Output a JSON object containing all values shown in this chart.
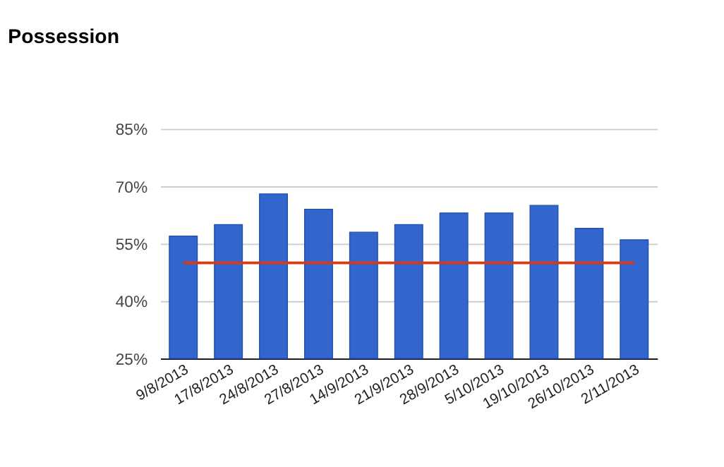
{
  "chart_data": {
    "type": "bar",
    "title": "Possession",
    "categories": [
      "9/8/2013",
      "17/8/2013",
      "24/8/2013",
      "27/8/2013",
      "14/9/2013",
      "21/9/2013",
      "28/9/2013",
      "5/10/2013",
      "19/10/2013",
      "26/10/2013",
      "2/11/2013"
    ],
    "series": [
      {
        "color": "#3366cc",
        "values": [
          57,
          60,
          68,
          64,
          58,
          60,
          63,
          63,
          65,
          59,
          56
        ]
      },
      {
        "type": "line",
        "color": "#dc3912",
        "values": [
          50,
          50,
          50,
          50,
          50,
          50,
          50,
          50,
          50,
          50,
          50
        ]
      }
    ],
    "ylim": [
      25,
      85
    ],
    "yticks": [
      {
        "value": 25,
        "label": "25%"
      },
      {
        "value": 40,
        "label": "40%"
      },
      {
        "value": 55,
        "label": "55%"
      },
      {
        "value": 70,
        "label": "70%"
      },
      {
        "value": 85,
        "label": "85%"
      }
    ],
    "grid": "y",
    "marker": "none",
    "line_style": "solid"
  }
}
